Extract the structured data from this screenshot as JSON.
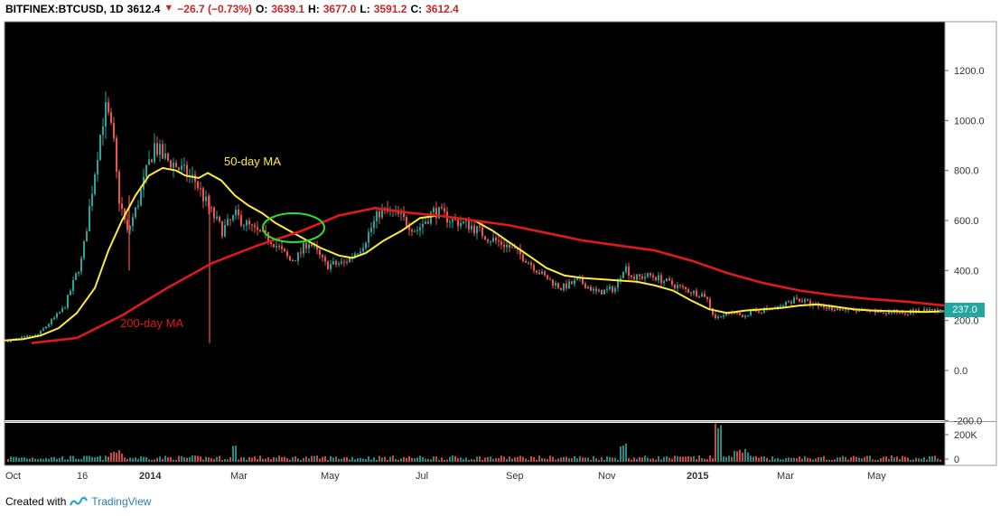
{
  "header": {
    "symbol": "BITFINEX:BTCUSD, 1D",
    "last": "3612.4",
    "change": "−26.7 (−0.73%)",
    "open_label": "O:",
    "open": "3639.1",
    "high_label": "H:",
    "high": "3677.0",
    "low_label": "L:",
    "low": "3591.2",
    "close_label": "C:",
    "close": "3612.4"
  },
  "footer": {
    "created_with": "Created with",
    "brand": "TradingView"
  },
  "colors": {
    "ma50": "#ffeb3b",
    "ma200": "#e0191b",
    "up": "#26a69a",
    "down": "#ef5350",
    "circle": "#2ee02e",
    "tag": "#21a6a2",
    "background": "#000000"
  },
  "chart_data": {
    "type": "candlestick",
    "title": "BITFINEX:BTCUSD, 1D",
    "x_ticks": [
      "Oct",
      "16",
      "2014",
      "Mar",
      "May",
      "Jul",
      "Sep",
      "Nov",
      "2015",
      "Mar",
      "May"
    ],
    "y_ticks": [
      "1200.0",
      "1000.0",
      "800.0",
      "600.0",
      "400.0",
      "200.0",
      "0.0",
      "-200.0"
    ],
    "ylim": [
      -200,
      1350
    ],
    "volume_ticks": [
      "200K",
      "0"
    ],
    "current_price_label": "237.0",
    "annotations": [
      "50-day MA",
      "200-day MA"
    ],
    "series": [
      {
        "name": "50-day MA",
        "x": [
          0,
          20,
          40,
          60,
          80,
          100,
          115,
          130,
          145,
          160,
          175,
          190,
          200,
          215,
          225,
          240,
          255,
          270,
          285,
          300,
          315,
          330,
          350,
          370,
          385,
          400,
          420,
          440,
          460,
          480,
          500,
          520,
          540,
          560,
          580,
          600,
          620,
          640,
          660,
          680,
          700,
          720,
          740,
          760,
          780,
          800,
          820,
          840,
          860,
          880,
          900,
          920,
          940,
          960,
          980,
          1000,
          1020,
          1040
        ],
        "values": [
          120,
          125,
          140,
          170,
          230,
          330,
          480,
          600,
          700,
          780,
          810,
          800,
          780,
          770,
          790,
          760,
          700,
          660,
          630,
          590,
          560,
          530,
          490,
          460,
          450,
          470,
          520,
          560,
          610,
          620,
          610,
          600,
          560,
          510,
          460,
          410,
          380,
          370,
          365,
          360,
          355,
          340,
          320,
          280,
          245,
          230,
          240,
          245,
          250,
          260,
          265,
          255,
          245,
          240,
          238,
          236,
          234,
          237
        ]
      },
      {
        "name": "200-day MA",
        "x": [
          30,
          80,
          130,
          180,
          230,
          280,
          330,
          370,
          410,
          450,
          480,
          520,
          560,
          600,
          640,
          680,
          720,
          760,
          800,
          840,
          880,
          920,
          960,
          1000,
          1040
        ],
        "values": [
          110,
          130,
          220,
          330,
          430,
          500,
          560,
          620,
          650,
          630,
          620,
          600,
          580,
          550,
          520,
          500,
          480,
          440,
          390,
          350,
          320,
          300,
          285,
          275,
          260
        ]
      }
    ]
  }
}
